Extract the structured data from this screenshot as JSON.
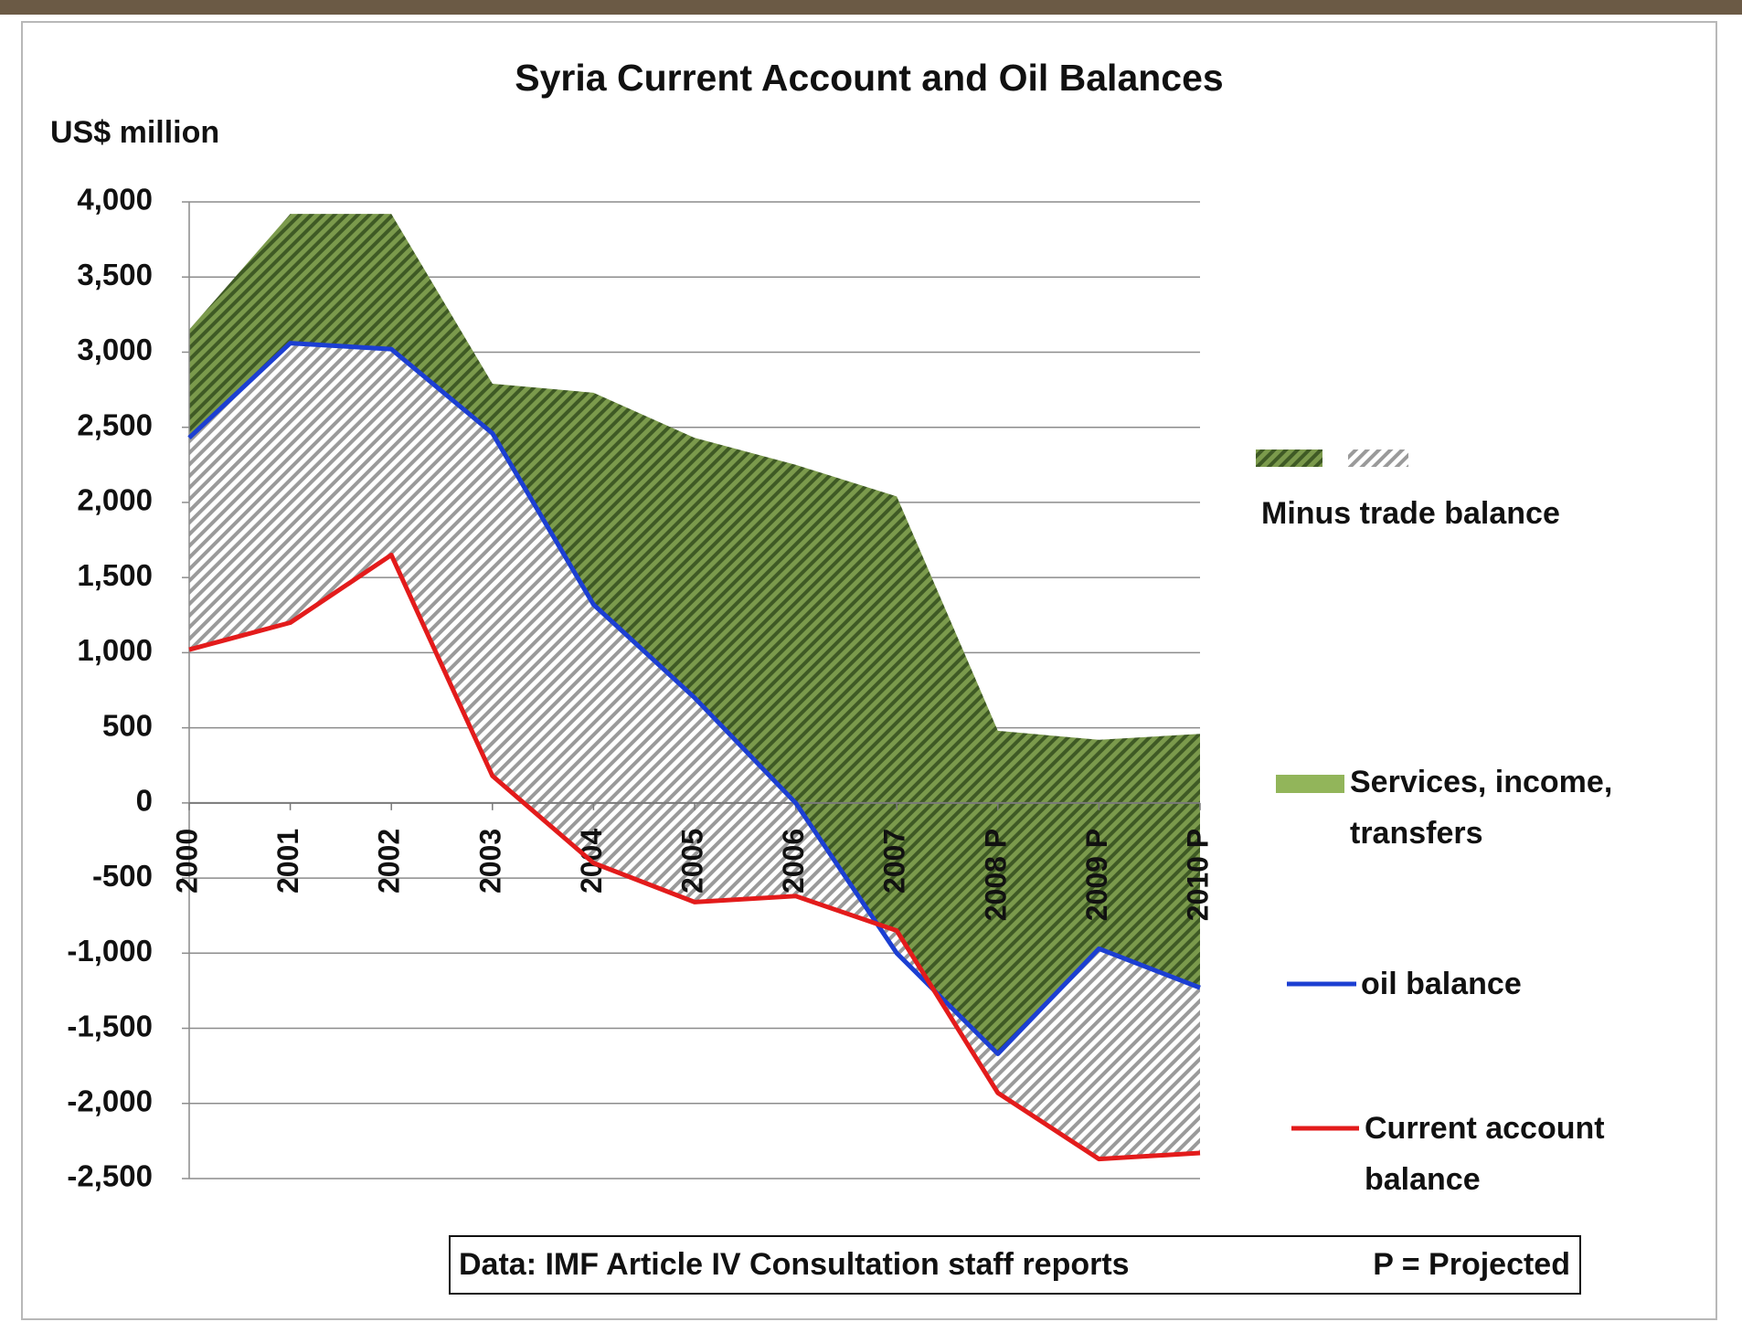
{
  "chart_data": {
    "type": "area-lines",
    "title": "Syria Current Account and Oil Balances",
    "y_label": "US$ million",
    "categories": [
      "2000",
      "2001",
      "2002",
      "2003",
      "2004",
      "2005",
      "2006",
      "2007",
      "2008 P",
      "2009 P",
      "2010 P"
    ],
    "series": [
      {
        "name": "Minus trade balance",
        "color": "#7b9a4c",
        "values": [
          3150,
          3920,
          3920,
          2790,
          2730,
          2430,
          2250,
          2040,
          480,
          420,
          460
        ]
      },
      {
        "name": "oil balance",
        "color": "#1c3fd2",
        "values": [
          2430,
          3060,
          3020,
          2460,
          1320,
          700,
          0,
          -1000,
          -1670,
          -970,
          -1230
        ]
      },
      {
        "name": "Current account balance",
        "color": "#e31b1b",
        "values": [
          1020,
          1200,
          1650,
          180,
          -400,
          -660,
          -620,
          -850,
          -1930,
          -2370,
          -2330
        ]
      }
    ],
    "extra_legend": {
      "name": "Services, income, transfers",
      "color": "#92b55a"
    },
    "gap_color": "#9a9a9a",
    "ylim": [
      -2500,
      4000
    ],
    "yticks": [
      {
        "value": -2500,
        "label": "-2,500"
      },
      {
        "value": -2000,
        "label": "-2,000"
      },
      {
        "value": -1500,
        "label": "-1,500"
      },
      {
        "value": -1000,
        "label": "-1,000"
      },
      -500,
      0,
      500,
      {
        "value": 1000,
        "label": "1,000"
      },
      {
        "value": 1500,
        "label": "1,500"
      },
      {
        "value": 2000,
        "label": "2,000"
      },
      {
        "value": 2500,
        "label": "2,500"
      },
      {
        "value": 3000,
        "label": "3,000"
      },
      {
        "value": 3500,
        "label": "3,500"
      },
      {
        "value": 4000,
        "label": "4,000"
      }
    ],
    "grid": true,
    "source": "Data: IMF Article IV Consultation staff reports",
    "footnote": "P = Projected"
  }
}
